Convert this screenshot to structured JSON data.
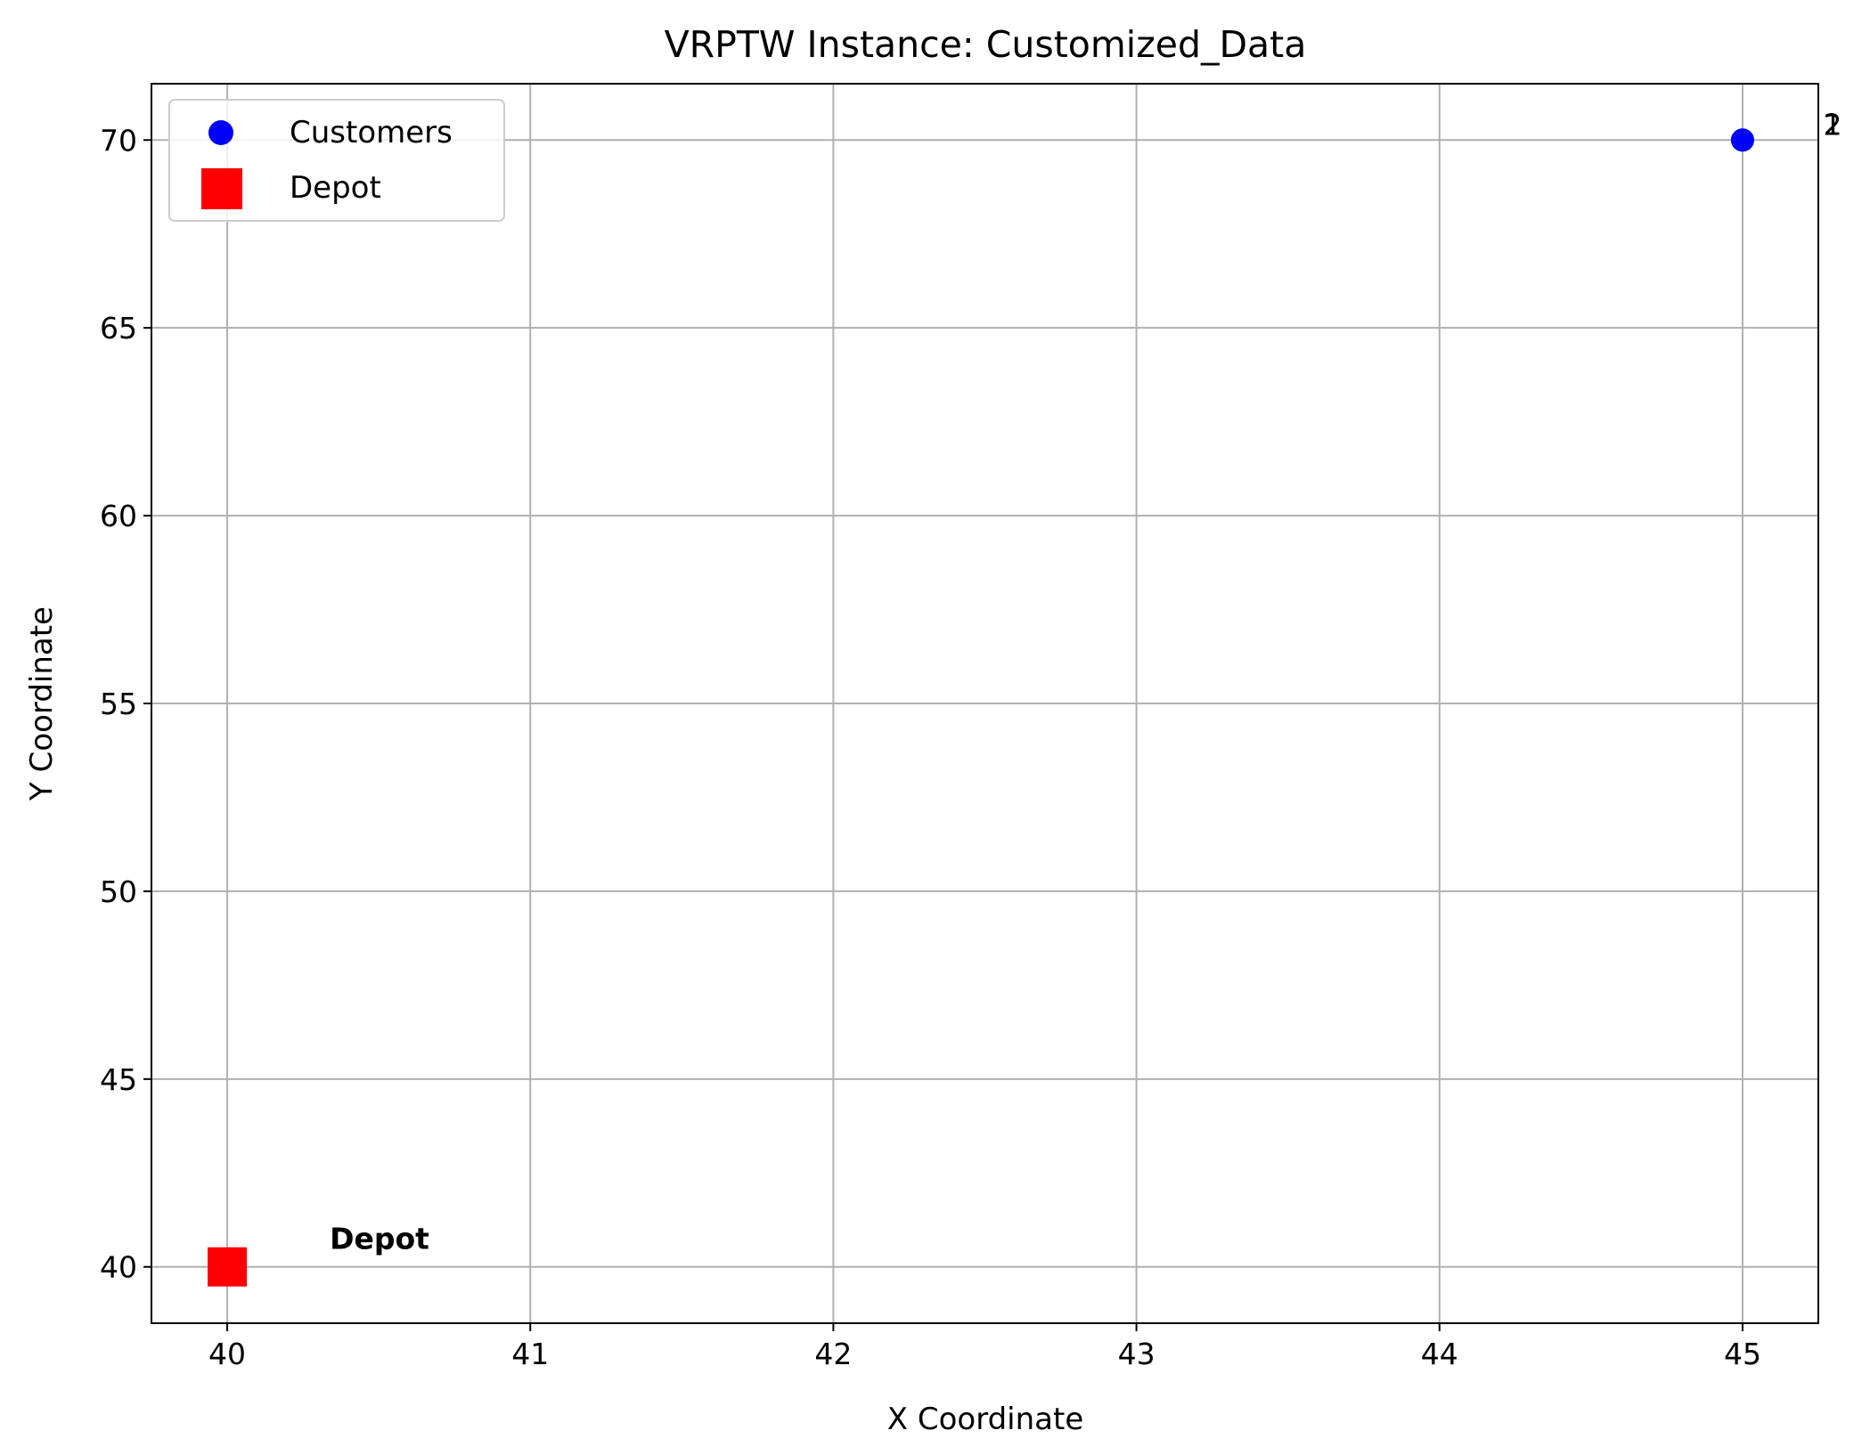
{
  "chart_data": {
    "type": "scatter",
    "title": "VRPTW Instance: Customized_Data",
    "xlabel": "X Coordinate",
    "ylabel": "Y Coordinate",
    "xlim": [
      39.75,
      45.25
    ],
    "ylim": [
      38.5,
      71.5
    ],
    "xticks": [
      40,
      41,
      42,
      43,
      44,
      45
    ],
    "yticks": [
      40,
      45,
      50,
      55,
      60,
      65,
      70
    ],
    "grid": true,
    "legend_position": "top-left",
    "series": [
      {
        "name": "Customers",
        "marker": "circle",
        "color": "#0000ff",
        "points": [
          {
            "x": 45,
            "y": 70,
            "label": "1"
          },
          {
            "x": 45,
            "y": 70,
            "label": "2"
          }
        ]
      },
      {
        "name": "Depot",
        "marker": "square",
        "color": "#ff0000",
        "points": [
          {
            "x": 40,
            "y": 40,
            "label": "Depot"
          }
        ]
      }
    ]
  }
}
